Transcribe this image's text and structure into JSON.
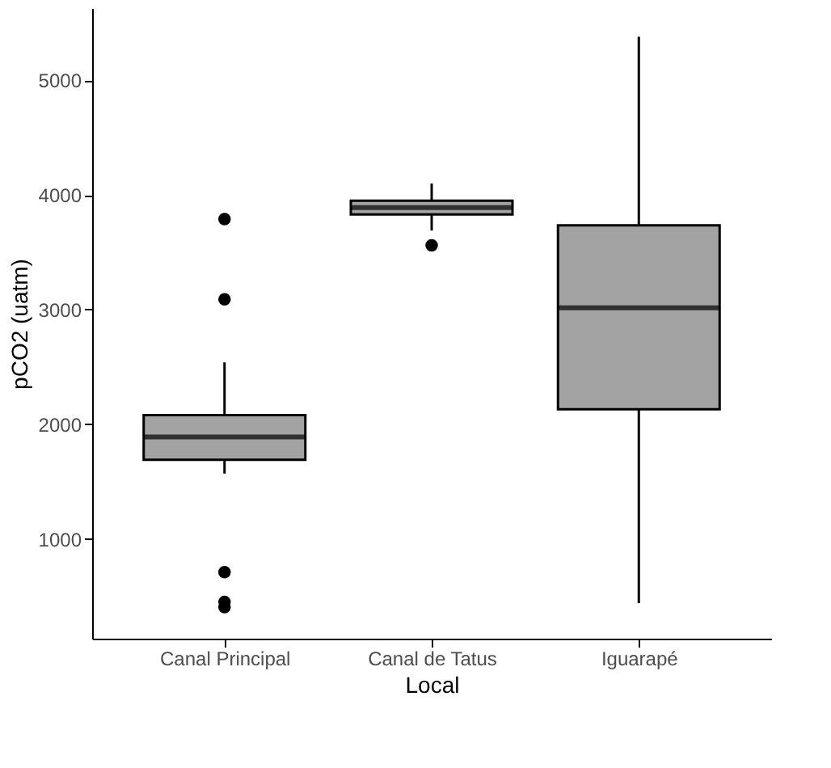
{
  "chart_data": {
    "type": "box",
    "xlabel": "Local",
    "ylabel": "pCO2 (uatm)",
    "categories": [
      "Canal Principal",
      "Canal de Tatus",
      "Iguarapé"
    ],
    "color": "#a3a3a3",
    "boxes": [
      {
        "low": 1570,
        "q1": 1690,
        "median": 1890,
        "q3": 2080,
        "high": 2540,
        "outliers": [
          3790,
          3090,
          710,
          450,
          405
        ]
      },
      {
        "low": 3690,
        "q1": 3830,
        "median": 3890,
        "q3": 3950,
        "high": 4100,
        "outliers": [
          3560
        ]
      },
      {
        "low": 440,
        "q1": 2130,
        "median": 3015,
        "q3": 3735,
        "high": 5380
      }
    ],
    "ylim": [
      130,
      5630
    ],
    "yticks": [
      1000,
      2000,
      3000,
      4000,
      5000
    ],
    "grid": false
  }
}
